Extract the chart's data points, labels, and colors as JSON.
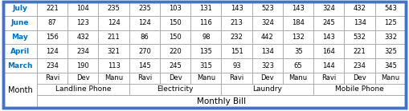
{
  "title": "Monthly Bill",
  "month_header": "Month",
  "categories": [
    "Landline Phone",
    "Electricity",
    "Laundry",
    "Mobile Phone"
  ],
  "sub_headers": [
    "Ravi",
    "Dev",
    "Manu"
  ],
  "months": [
    "March",
    "April",
    "May",
    "June",
    "July"
  ],
  "data": {
    "Landline Phone": {
      "Ravi": [
        234,
        124,
        156,
        87,
        221
      ],
      "Dev": [
        190,
        234,
        432,
        123,
        104
      ],
      "Manu": [
        113,
        321,
        211,
        124,
        235
      ]
    },
    "Electricity": {
      "Ravi": [
        145,
        270,
        86,
        124,
        235
      ],
      "Dev": [
        245,
        220,
        150,
        150,
        103
      ],
      "Manu": [
        315,
        135,
        98,
        116,
        131
      ]
    },
    "Laundry": {
      "Ravi": [
        93,
        151,
        232,
        213,
        143
      ],
      "Dev": [
        323,
        134,
        442,
        324,
        523
      ],
      "Manu": [
        65,
        35,
        132,
        184,
        143
      ]
    },
    "Mobile Phone": {
      "Ravi": [
        144,
        164,
        143,
        245,
        324
      ],
      "Dev": [
        234,
        221,
        532,
        134,
        432
      ],
      "Manu": [
        345,
        325,
        332,
        125,
        543
      ]
    }
  },
  "bg_color": "#ffffff",
  "outer_border_color": "#4472c4",
  "inner_border_color": "#a6a6a6",
  "month_text_color": "#0070c0",
  "header_text_color": "#000000",
  "data_text_color": "#000000",
  "cell_bg": "#ffffff",
  "font_size": 6.5,
  "header_font_size": 7.0,
  "bold_header": false,
  "outer_lw": 2.5,
  "inner_lw": 0.5
}
